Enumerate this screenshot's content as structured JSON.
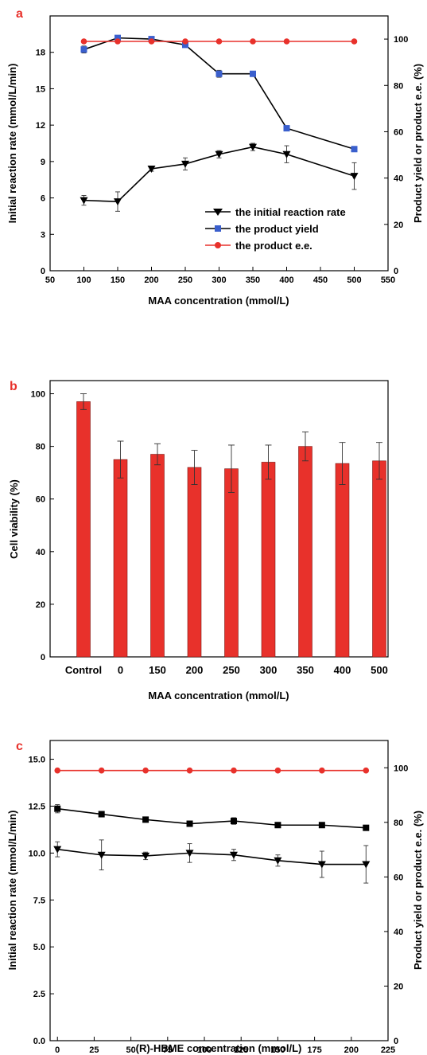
{
  "chart_data": [
    {
      "panel": "a",
      "type": "line",
      "xlabel": "MAA concentration (mmol/L)",
      "ylabel": "Initial reaction rate (mmol/L/min)",
      "y2label": "Product yield or product e.e. (%)",
      "xlim": [
        50,
        550
      ],
      "ylim": [
        0,
        21
      ],
      "y2lim": [
        0,
        110
      ],
      "x_ticks": [
        50,
        100,
        150,
        200,
        250,
        300,
        350,
        400,
        450,
        500,
        550
      ],
      "y_ticks": [
        0,
        3,
        6,
        9,
        12,
        15,
        18
      ],
      "y2_ticks": [
        0,
        20,
        40,
        60,
        80,
        100
      ],
      "legend_position": "bottom-right",
      "series": [
        {
          "name": "the initial reaction rate",
          "axis": "left",
          "marker": "triangle-down",
          "color": "#000000",
          "x": [
            100,
            150,
            200,
            250,
            300,
            350,
            400,
            500
          ],
          "y": [
            5.8,
            5.7,
            8.4,
            8.8,
            9.6,
            10.2,
            9.6,
            7.8
          ],
          "err": [
            0.4,
            0.8,
            0.2,
            0.5,
            0.3,
            0.3,
            0.7,
            1.1
          ]
        },
        {
          "name": "the product yield",
          "axis": "right",
          "marker": "square",
          "color": "#000000",
          "marker_color": "#3a5fcd",
          "x": [
            100,
            150,
            200,
            250,
            300,
            350,
            400,
            500
          ],
          "y": [
            95.5,
            100.5,
            100,
            97.5,
            85,
            85,
            61.5,
            52.5
          ],
          "err": [
            1.5,
            0.5,
            0.5,
            0.5,
            1.5,
            0.5,
            0.5,
            0.5
          ]
        },
        {
          "name": "the product e.e.",
          "axis": "right",
          "marker": "circle",
          "color": "#e8312b",
          "x": [
            100,
            150,
            200,
            250,
            300,
            350,
            400,
            500
          ],
          "y": [
            99,
            99,
            99,
            99,
            99,
            99,
            99,
            99
          ]
        }
      ]
    },
    {
      "panel": "b",
      "type": "bar",
      "xlabel": "MAA concentration (mmol/L)",
      "ylabel": "Cell viability (%)",
      "ylim": [
        0,
        105
      ],
      "y_ticks": [
        0,
        20,
        40,
        60,
        80,
        100
      ],
      "categories": [
        "Control",
        "0",
        "150",
        "200",
        "250",
        "300",
        "350",
        "400",
        "500"
      ],
      "values": [
        97,
        75,
        77,
        72,
        71.5,
        74,
        80,
        73.5,
        74.5
      ],
      "err": [
        3,
        7,
        4,
        6.5,
        9,
        6.5,
        5.5,
        8,
        7
      ],
      "color": "#e8312b"
    },
    {
      "panel": "c",
      "type": "line",
      "xlabel": "(R)-HBME concentration (mmol/L)",
      "ylabel": "Initial reaction rate (mmol/L/min)",
      "y2label": "Product yield or product e.e. (%)",
      "xlim": [
        -5,
        225
      ],
      "ylim": [
        0,
        16
      ],
      "y2lim": [
        0,
        110
      ],
      "x_ticks": [
        0,
        25,
        50,
        75,
        100,
        125,
        150,
        175,
        200,
        225
      ],
      "y_ticks": [
        "0.0",
        "2.5",
        "5.0",
        "7.5",
        "10.0",
        "12.5",
        "15.0"
      ],
      "y2_ticks": [
        0,
        20,
        40,
        60,
        80,
        100
      ],
      "series": [
        {
          "axis": "left",
          "marker": "triangle-down",
          "color": "#000000",
          "x": [
            0,
            30,
            60,
            90,
            120,
            150,
            180,
            210
          ],
          "y": [
            10.2,
            9.9,
            9.85,
            10.0,
            9.9,
            9.6,
            9.4,
            9.4
          ],
          "err": [
            0.4,
            0.8,
            0.2,
            0.5,
            0.3,
            0.3,
            0.7,
            1.0
          ]
        },
        {
          "axis": "right",
          "marker": "square",
          "color": "#000000",
          "x": [
            0,
            30,
            60,
            90,
            120,
            150,
            180,
            210
          ],
          "y": [
            85,
            83,
            81,
            79.5,
            80.5,
            79,
            79,
            78
          ],
          "err": [
            1.5,
            0.5,
            0.5,
            0.5,
            1.2,
            0.5,
            0.5,
            0.5
          ]
        },
        {
          "axis": "right",
          "marker": "circle",
          "color": "#e8312b",
          "x": [
            0,
            30,
            60,
            90,
            120,
            150,
            180,
            210
          ],
          "y": [
            99,
            99,
            99,
            99,
            99,
            99,
            99,
            99
          ]
        }
      ]
    }
  ]
}
